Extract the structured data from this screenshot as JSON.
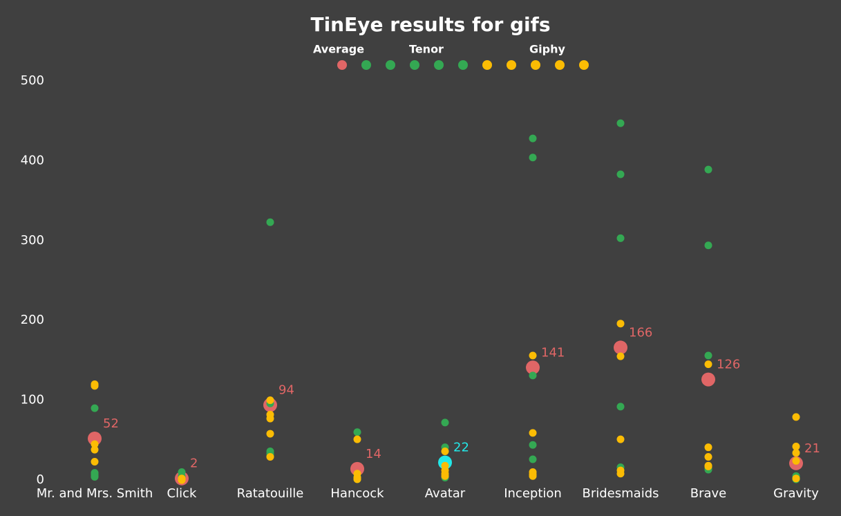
{
  "chart_data": {
    "type": "dot",
    "title": "TinEye results for gifs",
    "categories": [
      "Mr. and Mrs. Smith",
      "Click",
      "Ratatouille",
      "Hancock",
      "Avatar",
      "Inception",
      "Bridesmaids",
      "Brave",
      "Gravity"
    ],
    "ylim": [
      0,
      500
    ],
    "yticks": [
      0,
      100,
      200,
      300,
      400,
      500
    ],
    "series": [
      {
        "name": "Average",
        "color": "#e06666",
        "colors": [
          "#e06666",
          "#e06666",
          "#e06666",
          "#e06666",
          "#22e8e8",
          "#e06666",
          "#e06666",
          "#e06666",
          "#e06666"
        ],
        "values": [
          [
            52
          ],
          [
            2
          ],
          [
            94
          ],
          [
            14
          ],
          [
            22
          ],
          [
            141
          ],
          [
            166
          ],
          [
            126
          ],
          [
            21
          ]
        ]
      },
      {
        "name": "Tenor",
        "color": "#34a853",
        "values": [
          [
            90,
            9,
            7,
            5,
            4
          ],
          [
            10,
            5,
            3,
            2,
            1
          ],
          [
            323,
            96,
            36,
            33,
            30
          ],
          [
            60,
            4,
            3,
            2,
            1
          ],
          [
            72,
            41,
            6,
            4,
            3
          ],
          [
            428,
            404,
            131,
            44,
            26
          ],
          [
            447,
            383,
            303,
            92,
            16
          ],
          [
            389,
            294,
            156,
            15,
            13
          ],
          [
            5,
            3,
            2,
            1,
            1
          ]
        ]
      },
      {
        "name": "Giphy",
        "color": "#fbbc04",
        "values": [
          [
            120,
            118,
            45,
            38,
            23
          ],
          [
            2,
            1,
            1,
            0,
            0
          ],
          [
            100,
            82,
            77,
            58,
            29
          ],
          [
            51,
            8,
            3,
            2,
            1
          ],
          [
            36,
            18,
            12,
            8,
            5
          ],
          [
            156,
            59,
            10,
            7,
            5
          ],
          [
            196,
            155,
            51,
            12,
            8
          ],
          [
            145,
            41,
            29,
            18,
            17
          ],
          [
            79,
            42,
            34,
            24,
            2
          ]
        ]
      }
    ]
  }
}
